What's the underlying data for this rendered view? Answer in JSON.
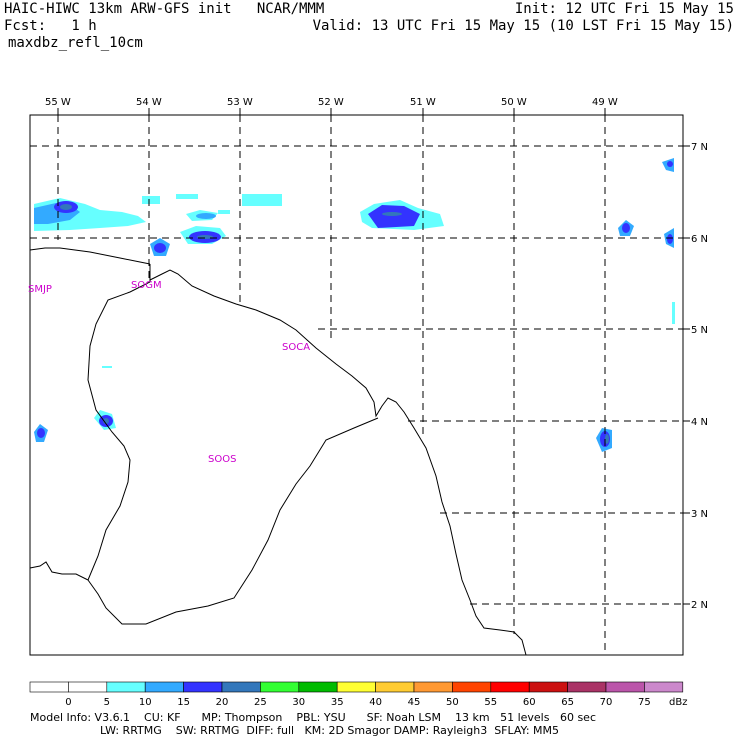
{
  "header": {
    "title": "HAIC-HIWC 13km ARW-GFS init   NCAR/MMM",
    "init": "Init: 12 UTC Fri 15 May 15",
    "fcst": "Fcst:   1 h",
    "valid": "Valid: 13 UTC Fri 15 May 15 (10 LST Fri 15 May 15)",
    "field": "maxdbz_refl_10cm"
  },
  "map": {
    "lon_labels": [
      "55 W",
      "54 W",
      "53 W",
      "52 W",
      "51 W",
      "50 W",
      "49 W"
    ],
    "lat_labels": [
      "7 N",
      "6 N",
      "5 N",
      "4 N",
      "3 N",
      "2 N"
    ],
    "stations": [
      "SMJP",
      "SOGM",
      "SOCA",
      "SOOS"
    ]
  },
  "colorbar": {
    "labels": [
      "0",
      "5",
      "10",
      "15",
      "20",
      "25",
      "30",
      "35",
      "40",
      "45",
      "50",
      "55",
      "60",
      "65",
      "70",
      "75"
    ],
    "unit": "dBz",
    "colors": [
      "#ffffff",
      "#ffffff",
      "#66ffff",
      "#33aaff",
      "#3333ff",
      "#3377bb",
      "#33ff33",
      "#00bb00",
      "#ffff33",
      "#ffcc33",
      "#ff9933",
      "#ff4400",
      "#ff0000",
      "#cc1111",
      "#aa3366",
      "#bb55aa",
      "#cc88cc"
    ]
  },
  "footer": {
    "line1": "Model Info: V3.6.1    CU: KF      MP: Thompson    PBL: YSU      SF: Noah LSM    13 km   51 levels   60 sec",
    "line2": "LW: RRTMG    SW: RRTMG  DIFF: full   KM: 2D Smagor DAMP: Rayleigh3  SFLAY: MM5"
  }
}
